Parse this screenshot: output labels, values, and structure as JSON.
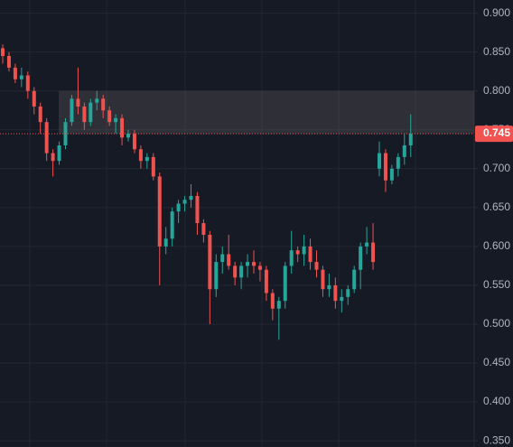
{
  "chart_data": {
    "type": "candlestick",
    "series": [
      {
        "up_color": "#26a69a",
        "down_color": "#ef5350",
        "open": [
          0.855,
          0.845,
          0.83,
          0.815,
          0.82,
          0.8,
          0.78,
          0.76,
          0.72,
          0.71,
          0.73,
          0.76,
          0.79,
          0.78,
          0.76,
          0.785,
          0.79,
          0.775,
          0.76,
          0.765,
          0.74,
          0.745,
          0.725,
          0.71,
          0.715,
          0.69,
          0.6,
          0.61,
          0.645,
          0.655,
          0.66,
          0.665,
          0.63,
          0.615,
          0.545,
          0.58,
          0.59,
          0.575,
          0.56,
          0.575,
          0.58,
          0.575,
          0.57,
          0.54,
          0.52,
          0.53,
          0.575,
          0.595,
          0.59,
          0.6,
          0.58,
          0.57,
          0.545,
          0.55,
          0.53,
          0.535,
          0.545,
          0.57,
          0.6,
          0.605,
          0.7,
          0.72,
          0.685,
          0.7,
          0.715,
          0.73
        ],
        "high": [
          0.86,
          0.85,
          0.835,
          0.83,
          0.825,
          0.805,
          0.785,
          0.765,
          0.725,
          0.735,
          0.765,
          0.795,
          0.83,
          0.785,
          0.79,
          0.8,
          0.795,
          0.78,
          0.77,
          0.77,
          0.75,
          0.75,
          0.73,
          0.72,
          0.72,
          0.695,
          0.625,
          0.65,
          0.66,
          0.665,
          0.68,
          0.67,
          0.635,
          0.62,
          0.59,
          0.6,
          0.615,
          0.58,
          0.58,
          0.59,
          0.595,
          0.58,
          0.575,
          0.545,
          0.535,
          0.58,
          0.62,
          0.6,
          0.615,
          0.61,
          0.595,
          0.575,
          0.565,
          0.56,
          0.545,
          0.55,
          0.575,
          0.605,
          0.625,
          0.63,
          0.735,
          0.725,
          0.705,
          0.72,
          0.745,
          0.77
        ],
        "low": [
          0.835,
          0.825,
          0.81,
          0.805,
          0.79,
          0.77,
          0.745,
          0.71,
          0.69,
          0.705,
          0.725,
          0.755,
          0.77,
          0.75,
          0.755,
          0.775,
          0.765,
          0.755,
          0.745,
          0.73,
          0.735,
          0.72,
          0.7,
          0.7,
          0.685,
          0.55,
          0.59,
          0.6,
          0.63,
          0.645,
          0.65,
          0.615,
          0.605,
          0.5,
          0.535,
          0.565,
          0.57,
          0.55,
          0.545,
          0.56,
          0.565,
          0.555,
          0.53,
          0.505,
          0.48,
          0.52,
          0.565,
          0.58,
          0.575,
          0.57,
          0.56,
          0.535,
          0.535,
          0.52,
          0.515,
          0.525,
          0.54,
          0.545,
          0.59,
          0.57,
          0.69,
          0.67,
          0.68,
          0.69,
          0.705,
          0.715
        ],
        "close": [
          0.845,
          0.83,
          0.815,
          0.82,
          0.8,
          0.78,
          0.76,
          0.72,
          0.71,
          0.73,
          0.76,
          0.79,
          0.78,
          0.76,
          0.785,
          0.79,
          0.775,
          0.76,
          0.765,
          0.74,
          0.745,
          0.725,
          0.71,
          0.715,
          0.69,
          0.6,
          0.61,
          0.645,
          0.655,
          0.66,
          0.665,
          0.63,
          0.615,
          0.545,
          0.58,
          0.59,
          0.575,
          0.56,
          0.575,
          0.58,
          0.575,
          0.57,
          0.54,
          0.52,
          0.53,
          0.575,
          0.595,
          0.59,
          0.6,
          0.58,
          0.57,
          0.545,
          0.55,
          0.53,
          0.535,
          0.545,
          0.57,
          0.6,
          0.605,
          0.58,
          0.72,
          0.685,
          0.7,
          0.715,
          0.73,
          0.745
        ]
      }
    ],
    "ylim": [
      0.342,
      0.917
    ],
    "yticks": [
      {
        "value": 0.9,
        "label": "0.900"
      },
      {
        "value": 0.85,
        "label": "0.850"
      },
      {
        "value": 0.8,
        "label": "0.800"
      },
      {
        "value": 0.75,
        "label": "0.750"
      },
      {
        "value": 0.7,
        "label": "0.700"
      },
      {
        "value": 0.65,
        "label": "0.650"
      },
      {
        "value": 0.6,
        "label": "0.600"
      },
      {
        "value": 0.55,
        "label": "0.550"
      },
      {
        "value": 0.5,
        "label": "0.500"
      },
      {
        "value": 0.45,
        "label": "0.450"
      },
      {
        "value": 0.4,
        "label": "0.400"
      },
      {
        "value": 0.35,
        "label": "0.350"
      }
    ],
    "grid": true,
    "zone": {
      "low": 0.745,
      "high": 0.8
    },
    "last_price": {
      "value": 0.745,
      "label": "0.745",
      "color": "#f05350"
    }
  }
}
